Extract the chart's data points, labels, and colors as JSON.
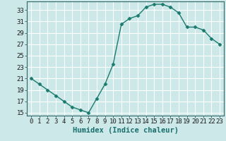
{
  "x": [
    0,
    1,
    2,
    3,
    4,
    5,
    6,
    7,
    8,
    9,
    10,
    11,
    12,
    13,
    14,
    15,
    16,
    17,
    18,
    19,
    20,
    21,
    22,
    23
  ],
  "y": [
    21,
    20,
    19,
    18,
    17,
    16,
    15.5,
    15,
    17.5,
    20,
    23.5,
    30.5,
    31.5,
    32,
    33.5,
    34,
    34,
    33.5,
    32.5,
    30,
    30,
    29.5,
    28,
    27
  ],
  "line_color": "#1a7a6e",
  "marker_color": "#1a7a6e",
  "bg_color": "#cce8e8",
  "grid_color": "#ffffff",
  "xlabel": "Humidex (Indice chaleur)",
  "ylim_min": 14.5,
  "ylim_max": 34.5,
  "xlim_min": -0.5,
  "xlim_max": 23.5,
  "yticks": [
    15,
    17,
    19,
    21,
    23,
    25,
    27,
    29,
    31,
    33
  ],
  "xticks": [
    0,
    1,
    2,
    3,
    4,
    5,
    6,
    7,
    8,
    9,
    10,
    11,
    12,
    13,
    14,
    15,
    16,
    17,
    18,
    19,
    20,
    21,
    22,
    23
  ],
  "xlabel_fontsize": 7.5,
  "tick_fontsize": 6.5,
  "marker_size": 2.5,
  "line_width": 1.0
}
